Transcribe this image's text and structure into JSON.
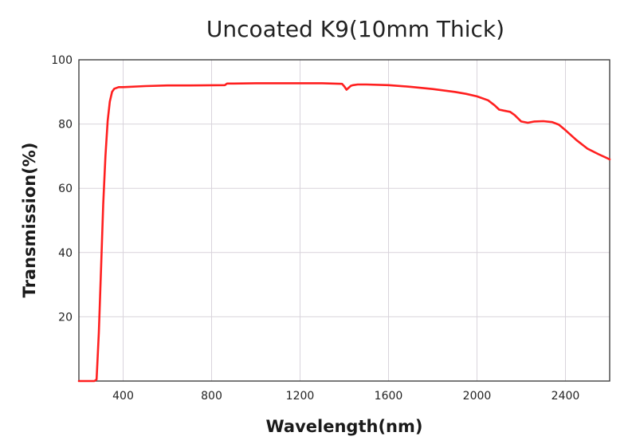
{
  "chart_data": {
    "type": "line",
    "title": "Uncoated K9(10mm Thick)",
    "xlabel": "Wavelength(nm)",
    "ylabel": "Transmission(%)",
    "xlim": [
      200,
      2600
    ],
    "ylim": [
      0,
      100
    ],
    "xticks": [
      400,
      800,
      1200,
      1600,
      2000,
      2400
    ],
    "yticks": [
      20,
      40,
      60,
      80,
      100
    ],
    "grid": true,
    "legend": "none",
    "series": [
      {
        "color": "#ff1f1f",
        "x": [
          200,
          270,
          280,
          290,
          300,
          310,
          320,
          330,
          340,
          350,
          360,
          380,
          400,
          500,
          600,
          700,
          860,
          870,
          900,
          1000,
          1100,
          1200,
          1300,
          1390,
          1400,
          1410,
          1420,
          1430,
          1440,
          1460,
          1500,
          1600,
          1700,
          1800,
          1900,
          1950,
          2000,
          2050,
          2080,
          2100,
          2120,
          2150,
          2170,
          2200,
          2230,
          2260,
          2300,
          2340,
          2370,
          2400,
          2450,
          2500,
          2550,
          2600
        ],
        "y": [
          0,
          0,
          0.5,
          15,
          35,
          55,
          70,
          81,
          87,
          90,
          91,
          91.5,
          91.5,
          91.8,
          92,
          92,
          92.1,
          92.6,
          92.6,
          92.7,
          92.7,
          92.7,
          92.7,
          92.5,
          91.7,
          90.7,
          91.3,
          91.9,
          92.1,
          92.3,
          92.3,
          92.1,
          91.6,
          90.9,
          90,
          89.4,
          88.6,
          87.4,
          85.8,
          84.5,
          84.2,
          83.8,
          82.8,
          80.8,
          80.4,
          80.8,
          80.9,
          80.6,
          79.8,
          78.1,
          75,
          72.3,
          70.6,
          69
        ]
      }
    ]
  }
}
